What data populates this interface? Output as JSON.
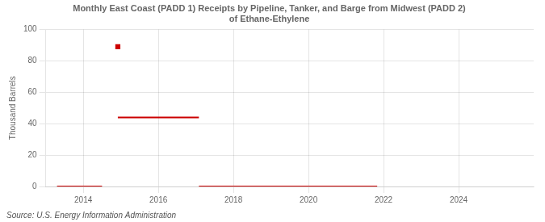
{
  "chart_data": {
    "type": "line",
    "title": "Monthly East Coast (PADD 1) Receipts by Pipeline, Tanker, and Barge from Midwest (PADD 2)\nof Ethane-Ethylene",
    "y_label": "Thousand Barrels",
    "annotations": [
      "Source: U.S. Energy Information Administration"
    ],
    "color": "#cc0000",
    "series": [
      {
        "x": [
          2013.3,
          2014.5
        ],
        "values": [
          0,
          0
        ]
      },
      {
        "x": [
          2014.92,
          2017.08
        ],
        "values": [
          44,
          44
        ]
      },
      {
        "x": [
          2017.08,
          2021.83
        ],
        "values": [
          0,
          0
        ]
      },
      {
        "x": [
          2014.92
        ],
        "values": [
          89
        ],
        "marker": "square",
        "line_style": "none"
      }
    ],
    "xlim": [
      2013.0,
      2026.0
    ],
    "xticks": [
      2014,
      2016,
      2018,
      2020,
      2022,
      2024
    ],
    "ylim": [
      0,
      100
    ],
    "yticks": [
      0,
      20,
      40,
      60,
      80,
      100
    ],
    "grid": true
  }
}
